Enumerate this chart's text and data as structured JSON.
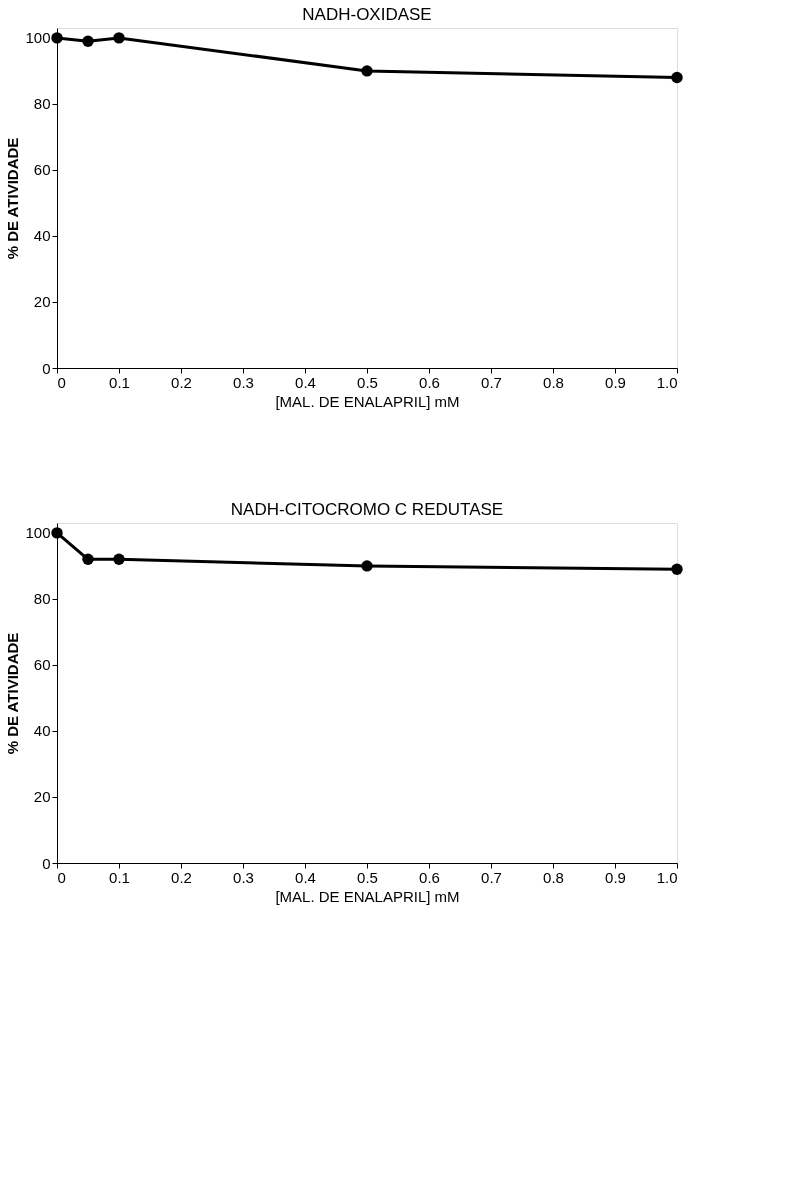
{
  "chart_data": [
    {
      "type": "line",
      "title": "NADH-OXIDASE",
      "xlabel": "[MAL. DE ENALAPRIL] mM",
      "ylabel": "% DE ATIVIDADE",
      "x": [
        0,
        0.05,
        0.1,
        0.5,
        1.0
      ],
      "series": [
        {
          "color": "#000000",
          "values": [
            100,
            99,
            100,
            90,
            88
          ]
        }
      ],
      "xlim": [
        0,
        1.0
      ],
      "xticks": [
        0,
        0.1,
        0.2,
        0.3,
        0.4,
        0.5,
        0.6,
        0.7,
        0.8,
        0.9,
        {
          "value": 1.0,
          "label": "1.0"
        }
      ],
      "ylim": [
        0,
        103
      ],
      "yticks": [
        0,
        20,
        40,
        60,
        80,
        100
      ],
      "grid": false,
      "marker": "circle",
      "line_style": "solid"
    },
    {
      "type": "line",
      "title": "NADH-CITOCROMO C REDUTASE",
      "xlabel": "[MAL. DE ENALAPRIL] mM",
      "ylabel": "% DE ATIVIDADE",
      "x": [
        0,
        0.05,
        0.1,
        0.5,
        1.0
      ],
      "series": [
        {
          "color": "#000000",
          "values": [
            100,
            92,
            92,
            90,
            89
          ]
        }
      ],
      "xlim": [
        0,
        1.0
      ],
      "xticks": [
        0,
        0.1,
        0.2,
        0.3,
        0.4,
        0.5,
        0.6,
        0.7,
        0.8,
        0.9,
        {
          "value": 1.0,
          "label": "1.0"
        }
      ],
      "ylim": [
        0,
        103
      ],
      "yticks": [
        0,
        20,
        40,
        60,
        80,
        100
      ],
      "grid": false,
      "marker": "circle",
      "line_style": "solid"
    }
  ]
}
